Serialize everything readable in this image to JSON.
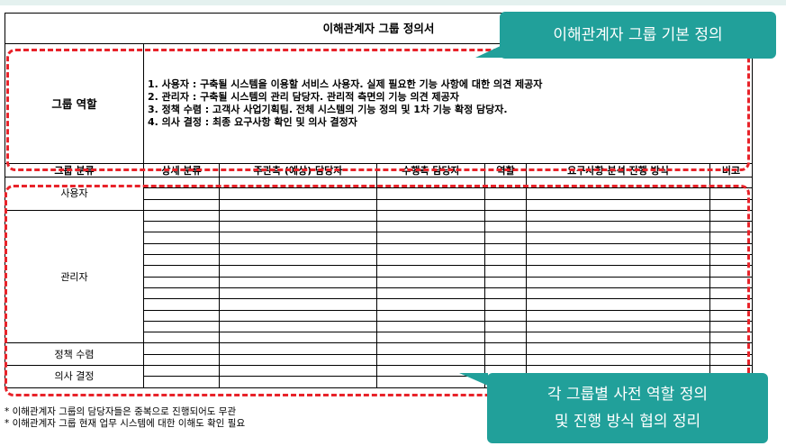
{
  "sheet": {
    "title": "이해관계자 그룹 정의서",
    "role_header": "그룹 역할",
    "roles": [
      "1. 사용자 : 구축될 시스템을 이용할 서비스 사용자. 실제 필요한 기능 사항에 대한 의견 제공자",
      "2. 관리자 : 구축될 시스템의 관리 담당자. 관리적 측면의 기능 의견 제공자",
      "3. 정책 수렴 : 고객사 사업기획팀. 전체 시스템의 기능 정의 및 1차 기능 확정 담당자.",
      "4. 의사 결정 : 최종 요구사항 확인 및 의사 결정자"
    ],
    "columns": [
      "그룹 분류",
      "상세 분류",
      "주관측 (예상) 담당자",
      "수행측 담당자",
      "역할",
      "요구사항 분석 진행 방식",
      "비고"
    ],
    "groups": [
      {
        "label": "사용자",
        "rows": 3
      },
      {
        "label": "관리자",
        "rows": 12
      },
      {
        "label": "정책 수렴",
        "rows": 2
      },
      {
        "label": "의사 결정",
        "rows": 2
      }
    ]
  },
  "notes": [
    "* 이해관계자 그룹의 담당자들은 중복으로 진행되어도 무관",
    "* 이해관계자 그룹 현재 업무 시스템에 대한 이해도 확인 필요"
  ],
  "callouts": {
    "top": "이해관계자 그룹 기본 정의",
    "bottom_line1": "각 그룹별 사전 역할 정의",
    "bottom_line2": "및 진행 방식 협의 정리"
  },
  "colors": {
    "callout": "#21a09a",
    "highlight": "#e8232a"
  }
}
